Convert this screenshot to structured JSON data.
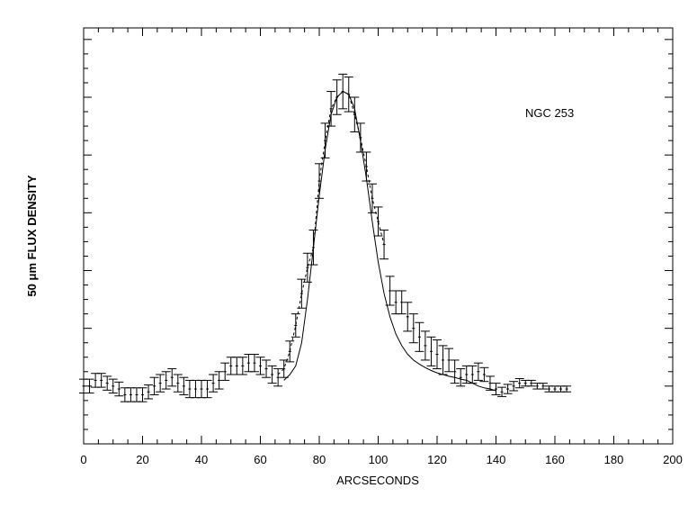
{
  "chart_data": {
    "type": "scatter",
    "title": "",
    "annotation": "NGC 253",
    "xlabel": "ARCSECONDS",
    "ylabel": "50 μm FLUX DENSITY",
    "xlim": [
      0,
      200
    ],
    "ylim": [
      0,
      7.2
    ],
    "x_ticks": [
      0,
      20,
      40,
      60,
      80,
      100,
      120,
      140,
      160,
      180,
      200
    ],
    "y_ticks_unlabeled": [
      1,
      2,
      3,
      4,
      5,
      6,
      7
    ],
    "grid": false,
    "legend": "none",
    "series": [
      {
        "style": "error-bar",
        "x": [
          0,
          2,
          4,
          6,
          8,
          10,
          12,
          14,
          16,
          18,
          20,
          22,
          24,
          26,
          28,
          30,
          32,
          34,
          36,
          38,
          40,
          42,
          44,
          46,
          48,
          50,
          52,
          54,
          56,
          58,
          60,
          62,
          64,
          66,
          68,
          70,
          72,
          74,
          76,
          78,
          80,
          82,
          84,
          86,
          88,
          90,
          92,
          94,
          96,
          98,
          100,
          102,
          104,
          106,
          108,
          110,
          112,
          114,
          116,
          118,
          120,
          122,
          124,
          126,
          128,
          130,
          132,
          134,
          136,
          138,
          140,
          142,
          144,
          146,
          148,
          150,
          152,
          154,
          156,
          158,
          160,
          162,
          164
        ],
        "y": [
          1.0,
          1.0,
          1.1,
          1.1,
          1.05,
          1.0,
          0.95,
          0.85,
          0.85,
          0.85,
          0.85,
          0.9,
          1.0,
          1.05,
          1.1,
          1.15,
          1.05,
          1.0,
          0.95,
          0.95,
          0.95,
          0.95,
          1.05,
          1.1,
          1.25,
          1.35,
          1.35,
          1.35,
          1.4,
          1.4,
          1.35,
          1.3,
          1.2,
          1.15,
          1.3,
          1.6,
          2.05,
          2.6,
          3.05,
          3.4,
          4.55,
          5.25,
          5.8,
          6.0,
          6.1,
          6.05,
          5.7,
          5.3,
          4.8,
          4.25,
          3.85,
          3.45,
          2.65,
          2.45,
          2.45,
          2.2,
          2.0,
          1.85,
          1.7,
          1.6,
          1.55,
          1.45,
          1.45,
          1.25,
          1.15,
          1.2,
          1.2,
          1.25,
          1.2,
          1.05,
          0.95,
          0.9,
          0.95,
          1.0,
          1.05,
          1.05,
          1.05,
          1.0,
          1.0,
          0.95,
          0.95,
          0.95,
          0.95
        ],
        "err": [
          0.12,
          0.12,
          0.12,
          0.12,
          0.12,
          0.12,
          0.12,
          0.12,
          0.12,
          0.12,
          0.12,
          0.12,
          0.15,
          0.15,
          0.15,
          0.15,
          0.15,
          0.15,
          0.15,
          0.15,
          0.15,
          0.15,
          0.15,
          0.15,
          0.15,
          0.15,
          0.15,
          0.15,
          0.15,
          0.15,
          0.15,
          0.15,
          0.15,
          0.15,
          0.15,
          0.18,
          0.2,
          0.25,
          0.25,
          0.3,
          0.3,
          0.3,
          0.3,
          0.3,
          0.3,
          0.3,
          0.3,
          0.25,
          0.25,
          0.25,
          0.25,
          0.25,
          0.25,
          0.2,
          0.2,
          0.25,
          0.25,
          0.25,
          0.25,
          0.25,
          0.25,
          0.25,
          0.2,
          0.2,
          0.15,
          0.15,
          0.15,
          0.15,
          0.12,
          0.12,
          0.1,
          0.08,
          0.08,
          0.08,
          0.08,
          0.05,
          0.05,
          0.05,
          0.05,
          0.05,
          0.05,
          0.05,
          0.05
        ]
      },
      {
        "style": "solid-line",
        "x": [
          68,
          70,
          72,
          74,
          76,
          78,
          80,
          82,
          84,
          86,
          88,
          90,
          92,
          94,
          96,
          98,
          100,
          102,
          104,
          106,
          108,
          110,
          112,
          114,
          116,
          118,
          120,
          122,
          124,
          126,
          128,
          130,
          132,
          134,
          136,
          138,
          140
        ],
        "y": [
          1.1,
          1.2,
          1.35,
          1.75,
          2.5,
          3.4,
          4.3,
          5.1,
          5.7,
          6.0,
          6.1,
          6.05,
          5.8,
          5.25,
          4.6,
          3.85,
          3.15,
          2.6,
          2.2,
          1.9,
          1.7,
          1.55,
          1.45,
          1.38,
          1.32,
          1.27,
          1.23,
          1.2,
          1.17,
          1.15,
          1.12,
          1.1,
          1.05,
          1.0,
          0.97,
          0.95,
          0.92
        ]
      },
      {
        "style": "dashed-line",
        "x": [
          66,
          68,
          70,
          72,
          74,
          76,
          78,
          80,
          82,
          84,
          86,
          88,
          90,
          92,
          94,
          96,
          98,
          100,
          102
        ],
        "y": [
          1.2,
          1.3,
          1.6,
          2.05,
          2.6,
          3.05,
          3.4,
          4.55,
          5.25,
          5.8,
          6.0,
          6.1,
          6.05,
          5.7,
          5.3,
          4.8,
          4.25,
          3.85,
          3.45
        ]
      }
    ]
  }
}
